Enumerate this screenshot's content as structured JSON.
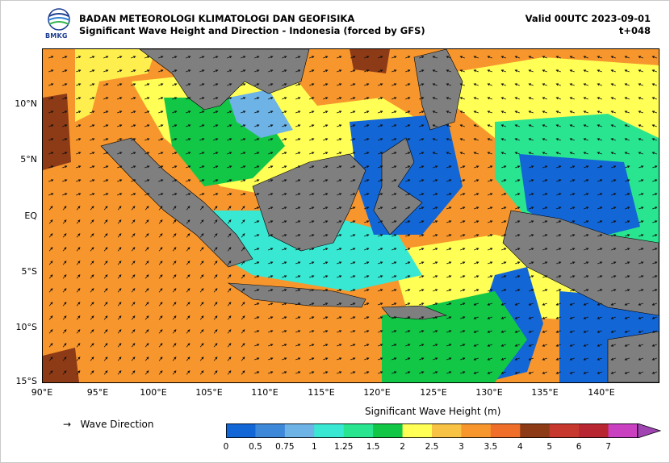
{
  "header": {
    "agency": "BADAN METEOROLOGI KLIMATOLOGI DAN GEOFISIKA",
    "subtitle": "Significant Wave Height and Direction - Indonesia (forced by GFS)",
    "valid": "Valid 00UTC 2023-09-01",
    "timestep": "t+048",
    "logo_text": "BMKG"
  },
  "axes": {
    "lat_labels": [
      "10°N",
      "5°N",
      "EQ",
      "5°S",
      "10°S",
      "15°S"
    ],
    "lon_labels": [
      "90°E",
      "95°E",
      "100°E",
      "105°E",
      "110°E",
      "115°E",
      "120°E",
      "125°E",
      "130°E",
      "135°E",
      "140°E"
    ]
  },
  "legend": {
    "arrow_glyph": "→",
    "direction_label": "Wave Direction"
  },
  "colorbar": {
    "title": "Significant Wave Height (m)",
    "ticks": [
      "0",
      "0.5",
      "0.75",
      "1",
      "1.25",
      "1.5",
      "2",
      "2.5",
      "3",
      "3.5",
      "4",
      "5",
      "6",
      "7"
    ],
    "colors": [
      "#1366d6",
      "#3d88d8",
      "#6db3e6",
      "#38e8d3",
      "#29e58f",
      "#12c646",
      "#ffff55",
      "#f8c244",
      "#f7962d",
      "#ee6e2a",
      "#8d3a16",
      "#c6372d",
      "#b82631",
      "#c940c1",
      "#a044b2"
    ]
  },
  "map": {
    "land_color": "#7f7f7f",
    "wave_colors": {
      "low": "#1366d6",
      "midlow": "#6db3e6",
      "cyan": "#38e8d3",
      "green": "#12c646",
      "yellow": "#ffff55",
      "orange": "#f7962d",
      "brown": "#8d3a16"
    }
  }
}
